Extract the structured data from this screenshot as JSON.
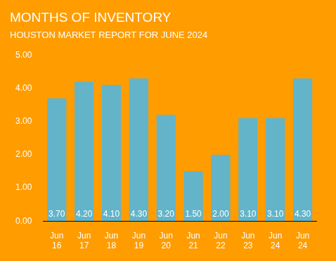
{
  "chart_data": {
    "type": "bar",
    "title": "MONTHS OF INVENTORY",
    "subtitle": "HOUSTON MARKET REPORT FOR JUNE 2024",
    "categories": [
      "Jun 16",
      "Jun 17",
      "Jun 18",
      "Jun 19",
      "Jun 20",
      "Jun 21",
      "Jun 22",
      "Jun 23",
      "Jun 24",
      "Jun 24"
    ],
    "values": [
      3.7,
      4.2,
      4.1,
      4.3,
      3.2,
      1.5,
      2.0,
      3.1,
      3.1,
      4.3
    ],
    "value_labels": [
      "3.70",
      "4.20",
      "4.10",
      "4.30",
      "3.20",
      "1.50",
      "2.00",
      "3.10",
      "3.10",
      "4.30"
    ],
    "color": "#63b4c9",
    "ylim": [
      0,
      5
    ],
    "yticks": [
      {
        "value": 0,
        "label": "0.00"
      },
      {
        "value": 1,
        "label": "1.00"
      },
      {
        "value": 2,
        "label": "2.00"
      },
      {
        "value": 3,
        "label": "3.00"
      },
      {
        "value": 4,
        "label": "4.00"
      },
      {
        "value": 5,
        "label": "5.00"
      }
    ],
    "grid": false,
    "data_labels": true
  }
}
